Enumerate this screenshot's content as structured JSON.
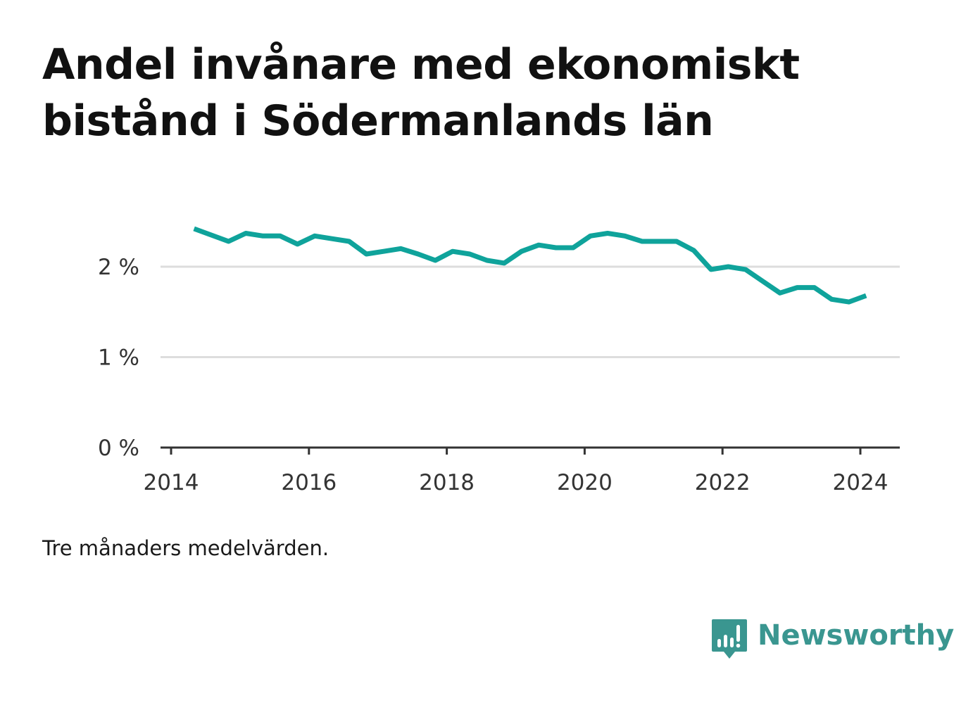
{
  "title": "Andel invånare med ekonomiskt bistånd i Södermanlands län",
  "note": "Tre månaders medelvärden.",
  "brand": {
    "name": "Newsworthy",
    "color": "#3a9690"
  },
  "colors": {
    "line": "#0fa39b",
    "grid": "#dddddd",
    "axis": "#333333",
    "text": "#333333"
  },
  "chart_data": {
    "type": "line",
    "title": "Andel invånare med ekonomiskt bistånd i Södermanlands län",
    "xlabel": "",
    "ylabel": "",
    "x_ticks": [
      "2014",
      "2016",
      "2018",
      "2020",
      "2022",
      "2024"
    ],
    "y_ticks": [
      "0 %",
      "1 %",
      "2 %"
    ],
    "ylim": [
      0,
      2.5
    ],
    "grid": true,
    "legend": "none",
    "series": [
      {
        "x": [
          "2014-05",
          "2014-08",
          "2014-11",
          "2015-02",
          "2015-05",
          "2015-08",
          "2015-11",
          "2016-02",
          "2016-05",
          "2016-08",
          "2016-11",
          "2017-02",
          "2017-05",
          "2017-08",
          "2017-11",
          "2018-02",
          "2018-05",
          "2018-08",
          "2018-11",
          "2019-02",
          "2019-05",
          "2019-08",
          "2019-11",
          "2020-02",
          "2020-05",
          "2020-08",
          "2020-11",
          "2021-02",
          "2021-05",
          "2021-08",
          "2021-11",
          "2022-02",
          "2022-05",
          "2022-08",
          "2022-11",
          "2023-02",
          "2023-05",
          "2023-08",
          "2023-11",
          "2024-02"
        ],
        "values": [
          2.42,
          2.35,
          2.28,
          2.37,
          2.34,
          2.34,
          2.25,
          2.34,
          2.31,
          2.28,
          2.14,
          2.17,
          2.2,
          2.14,
          2.07,
          2.17,
          2.14,
          2.07,
          2.04,
          2.17,
          2.24,
          2.21,
          2.21,
          2.34,
          2.37,
          2.34,
          2.28,
          2.28,
          2.28,
          2.18,
          1.97,
          2.0,
          1.97,
          1.84,
          1.71,
          1.77,
          1.77,
          1.64,
          1.61,
          1.68
        ]
      }
    ]
  }
}
